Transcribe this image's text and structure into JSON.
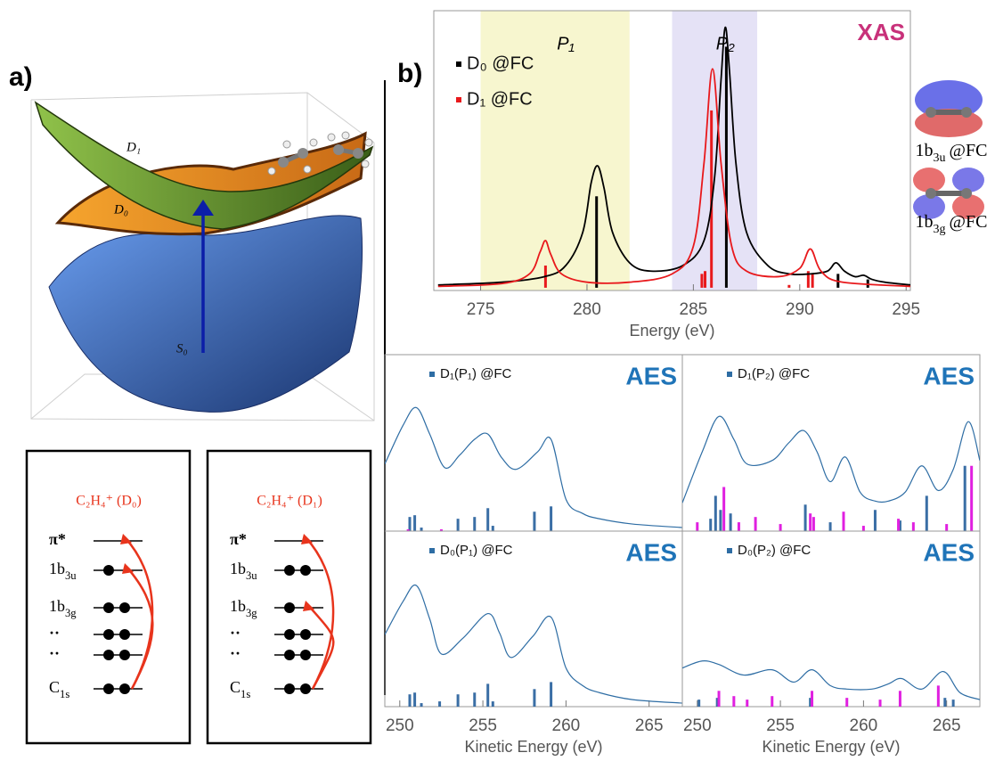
{
  "panel_labels": {
    "a": "a)",
    "b": "b)"
  },
  "surfaces": {
    "labels": [
      "D₁",
      "D₀",
      "S₀"
    ]
  },
  "level_diagrams": [
    {
      "title": "C₂H₄⁺ (D₀)",
      "levels": [
        {
          "base": "π*",
          "electrons": 0
        },
        {
          "base": "1b",
          "sub": "3u",
          "electrons": 1
        },
        {
          "base": "1b",
          "sub": "3g",
          "electrons": 2
        },
        {
          "base": "··",
          "electrons": 2
        },
        {
          "base": "··",
          "electrons": 2
        },
        {
          "base": "C",
          "sub": "1s",
          "electrons": 2
        }
      ]
    },
    {
      "title": "C₂H₄⁺ (D₁)",
      "levels": [
        {
          "base": "π*",
          "electrons": 0
        },
        {
          "base": "1b",
          "sub": "3u",
          "electrons": 2
        },
        {
          "base": "1b",
          "sub": "3g",
          "electrons": 1
        },
        {
          "base": "··",
          "electrons": 2
        },
        {
          "base": "··",
          "electrons": 2
        },
        {
          "base": "C",
          "sub": "1s",
          "electrons": 2
        }
      ]
    }
  ],
  "orbitals": [
    {
      "base": "1b",
      "sub": "3u",
      "suffix": "@FC"
    },
    {
      "base": "1b",
      "sub": "3g",
      "suffix": "@FC"
    }
  ],
  "chart_data": [
    {
      "type": "line",
      "title": "XAS",
      "title_color": "#c8317a",
      "xlabel": "Energy (eV)",
      "xlim": [
        272.8,
        295.2
      ],
      "ylim": [
        -0.01,
        1
      ],
      "xticks": [
        275,
        280,
        285,
        290,
        295
      ],
      "regions": [
        {
          "label": "P₁",
          "range": [
            275,
            282
          ],
          "color": "#f7f6cf"
        },
        {
          "label": "P₂",
          "range": [
            284,
            288
          ],
          "color": "#e5e2f6"
        }
      ],
      "series": [
        {
          "name": "D₀ @FC",
          "color": "#000000",
          "x": [
            273,
            276,
            278,
            279,
            279.8,
            280.2,
            280.5,
            280.8,
            281.2,
            282,
            283,
            284.5,
            285.5,
            286,
            286.3,
            286.5,
            286.7,
            287,
            287.5,
            288.5,
            289.5,
            290.5,
            291.3,
            291.7,
            292.1,
            292.6,
            293,
            293.4,
            294,
            295.2
          ],
          "values": [
            0.01,
            0.02,
            0.04,
            0.08,
            0.2,
            0.38,
            0.44,
            0.36,
            0.2,
            0.09,
            0.06,
            0.08,
            0.17,
            0.4,
            0.75,
            0.94,
            0.78,
            0.45,
            0.2,
            0.08,
            0.05,
            0.05,
            0.06,
            0.09,
            0.06,
            0.04,
            0.045,
            0.03,
            0.02,
            0.01
          ]
        },
        {
          "name": "D₁ @FC",
          "color": "#e8191c",
          "x": [
            273,
            276,
            277.3,
            277.8,
            278.05,
            278.3,
            278.8,
            280,
            282,
            284,
            285,
            285.5,
            285.9,
            286.3,
            286.8,
            287.5,
            289,
            290,
            290.5,
            291,
            292,
            295.2
          ],
          "values": [
            0.005,
            0.015,
            0.05,
            0.13,
            0.17,
            0.12,
            0.05,
            0.02,
            0.02,
            0.05,
            0.15,
            0.45,
            0.79,
            0.45,
            0.15,
            0.06,
            0.04,
            0.07,
            0.14,
            0.06,
            0.02,
            0.005
          ]
        }
      ],
      "sticks": [
        {
          "color": "#000000",
          "x": [
            280.45,
            286.55,
            291.8,
            293.2
          ],
          "values": [
            0.33,
            0.87,
            0.05,
            0.03
          ]
        },
        {
          "color": "#e8191c",
          "x": [
            278.05,
            285.4,
            285.55,
            285.85,
            289.5,
            290.4,
            290.6
          ],
          "values": [
            0.08,
            0.05,
            0.06,
            0.64,
            0.01,
            0.06,
            0.05
          ]
        }
      ]
    },
    {
      "type": "line",
      "title": "AES",
      "title_color": "#1f74b8",
      "xlim": [
        249.1,
        267
      ],
      "ylim": [
        0,
        1
      ],
      "series": [
        {
          "name": "D₁(P₁) @FC",
          "color": "#2e6da4",
          "x": [
            249.1,
            250.2,
            251,
            251.8,
            252.7,
            253.6,
            254.5,
            255.3,
            256.1,
            257,
            258.3,
            259.1,
            260,
            261,
            262,
            264,
            267
          ],
          "values": [
            0.38,
            0.6,
            0.7,
            0.55,
            0.36,
            0.43,
            0.52,
            0.55,
            0.42,
            0.35,
            0.45,
            0.52,
            0.18,
            0.1,
            0.07,
            0.04,
            0.02
          ]
        }
      ],
      "sticks": [
        {
          "color": "#3a6ea5",
          "x": [
            250.6,
            250.9,
            251.3,
            253.5,
            254.5,
            255.3,
            255.6,
            258.1,
            259.1
          ],
          "values": [
            0.08,
            0.09,
            0.02,
            0.07,
            0.08,
            0.13,
            0.03,
            0.11,
            0.14
          ]
        },
        {
          "color": "#e020e0",
          "x": [
            250.5,
            252.5
          ],
          "values": [
            0.01,
            0.01
          ]
        }
      ]
    },
    {
      "type": "line",
      "title": "AES",
      "title_color": "#1f74b8",
      "xlim": [
        249.1,
        267
      ],
      "ylim": [
        0,
        1
      ],
      "series": [
        {
          "name": "D₁(P₂) @FC",
          "color": "#2e6da4",
          "x": [
            249.1,
            250.3,
            251.3,
            252.2,
            253,
            254.5,
            255.5,
            256.4,
            257.2,
            258,
            258.9,
            259.8,
            260.7,
            261.5,
            262.5,
            263.5,
            264.5,
            265.4,
            266.3,
            267
          ],
          "values": [
            0.16,
            0.45,
            0.65,
            0.52,
            0.38,
            0.4,
            0.5,
            0.57,
            0.45,
            0.28,
            0.42,
            0.22,
            0.17,
            0.17,
            0.22,
            0.37,
            0.23,
            0.35,
            0.62,
            0.4
          ]
        }
      ],
      "sticks": [
        {
          "color": "#3a6ea5",
          "x": [
            250.8,
            251.1,
            251.4,
            252,
            256.5,
            258,
            260.7,
            262.2,
            263.8,
            266.1
          ],
          "values": [
            0.07,
            0.2,
            0.12,
            0.1,
            0.15,
            0.05,
            0.12,
            0.06,
            0.2,
            0.37
          ]
        },
        {
          "color": "#e020e0",
          "x": [
            250,
            251.6,
            252.5,
            253.5,
            255,
            256.8,
            257,
            258.8,
            260,
            262.1,
            263,
            265,
            266.5
          ],
          "values": [
            0.05,
            0.25,
            0.05,
            0.08,
            0.04,
            0.1,
            0.08,
            0.11,
            0.03,
            0.07,
            0.05,
            0.04,
            0.37
          ]
        }
      ]
    },
    {
      "type": "line",
      "title": "AES",
      "title_color": "#1f74b8",
      "xlabel": "Kinetic Energy (eV)",
      "xlim": [
        249.1,
        267
      ],
      "ylim": [
        0,
        1
      ],
      "xticks": [
        250,
        255,
        260,
        265
      ],
      "series": [
        {
          "name": "D₀(P₁) @FC",
          "color": "#2e6da4",
          "x": [
            249.1,
            250.2,
            251,
            251.8,
            252.5,
            253.8,
            255.3,
            256,
            256.7,
            258,
            259.1,
            260,
            261,
            262,
            264,
            267
          ],
          "values": [
            0.41,
            0.6,
            0.69,
            0.5,
            0.3,
            0.39,
            0.53,
            0.42,
            0.28,
            0.4,
            0.51,
            0.22,
            0.12,
            0.08,
            0.04,
            0.02
          ]
        }
      ],
      "sticks": [
        {
          "color": "#3a6ea5",
          "x": [
            250.6,
            250.9,
            251.3,
            252.4,
            253.5,
            254.5,
            255.3,
            255.6,
            258.1,
            259.1
          ],
          "values": [
            0.07,
            0.08,
            0.02,
            0.03,
            0.07,
            0.08,
            0.13,
            0.03,
            0.1,
            0.14
          ]
        }
      ]
    },
    {
      "type": "line",
      "title": "AES",
      "title_color": "#1f74b8",
      "xlabel": "Kinetic Energy (eV)",
      "xlim": [
        249.1,
        267
      ],
      "ylim": [
        0,
        1
      ],
      "xticks": [
        250,
        255,
        260,
        265
      ],
      "series": [
        {
          "name": "D₀(P₂) @FC",
          "color": "#2e6da4",
          "x": [
            249.1,
            250.3,
            251.3,
            252.8,
            254.5,
            255.8,
            256.9,
            258,
            259,
            260.5,
            261.5,
            262.3,
            263.5,
            264.8,
            265.8,
            267
          ],
          "values": [
            0.22,
            0.26,
            0.24,
            0.18,
            0.21,
            0.14,
            0.21,
            0.12,
            0.1,
            0.1,
            0.13,
            0.16,
            0.1,
            0.2,
            0.08,
            0.04
          ]
        }
      ],
      "sticks": [
        {
          "color": "#3a6ea5",
          "x": [
            250.1,
            251.2,
            256.8,
            264.9,
            265.4
          ],
          "values": [
            0.04,
            0.05,
            0.05,
            0.05,
            0.04
          ]
        },
        {
          "color": "#e020e0",
          "x": [
            251.3,
            252.2,
            253,
            254.5,
            256.9,
            259,
            261,
            262.2,
            264.5
          ],
          "values": [
            0.09,
            0.06,
            0.04,
            0.06,
            0.09,
            0.05,
            0.04,
            0.09,
            0.12
          ]
        }
      ]
    }
  ]
}
